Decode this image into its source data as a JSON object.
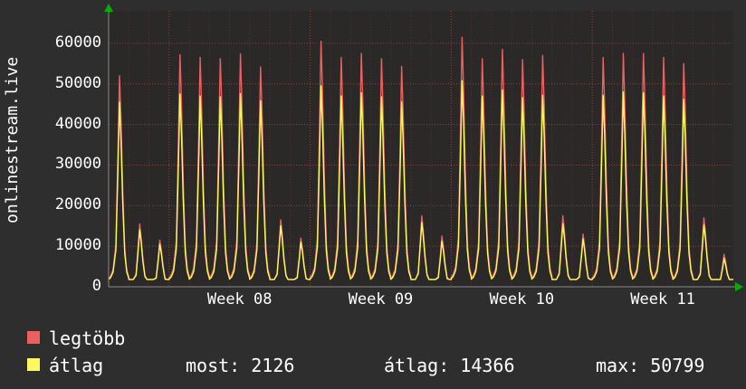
{
  "colors": {
    "background": "#2e2e2e",
    "plot_background": "#2b2828",
    "grid_minor": "rgba(255,100,100,0.18)",
    "grid_major": "rgba(255,100,100,0.45)",
    "axis": "#8a8a8a",
    "arrow": "#00b000",
    "text": "#ffffff",
    "series_max": "#ee6060",
    "series_avg": "#fafa5f"
  },
  "legend": {
    "series": [
      {
        "label": "legtöbb",
        "color": "#ee6060"
      },
      {
        "label": "átlag",
        "color": "#fafa5f"
      }
    ],
    "stats": [
      {
        "text": "most: 2126"
      },
      {
        "text": "átlag: 14366"
      },
      {
        "text": "max: 50799"
      }
    ]
  },
  "chart_data": {
    "type": "line",
    "title": "onlinestream.live",
    "ylabel": "onlinestream.live",
    "xlabel": "",
    "ylim": [
      0,
      68000
    ],
    "yticks": [
      0,
      10000,
      20000,
      30000,
      40000,
      50000,
      60000
    ],
    "grid": true,
    "legend_position": "bottom-left",
    "days_shown": 31,
    "baseline": 1800,
    "x_week_labels": [
      {
        "label": "Week 08",
        "start_day": 3
      },
      {
        "label": "Week 09",
        "start_day": 10
      },
      {
        "label": "Week 10",
        "start_day": 17
      },
      {
        "label": "Week 11",
        "start_day": 24
      }
    ],
    "series": [
      {
        "name": "legtöbb",
        "color": "#ee6060",
        "daily_peaks": [
          52000,
          15500,
          11500,
          57200,
          56500,
          56200,
          57400,
          54200,
          16500,
          12000,
          60500,
          56500,
          57500,
          56200,
          54300,
          17500,
          12500,
          61500,
          56200,
          58500,
          56000,
          57000,
          17500,
          13000,
          56500,
          57500,
          57500,
          56500,
          55000,
          17000,
          8000
        ]
      },
      {
        "name": "átlag",
        "color": "#fafa5f",
        "daily_peaks": [
          45500,
          14000,
          10500,
          47500,
          47000,
          46800,
          47600,
          45800,
          15000,
          11000,
          49500,
          47000,
          47800,
          46800,
          45600,
          15800,
          11200,
          50799,
          47000,
          48500,
          46600,
          47200,
          15500,
          11800,
          47200,
          48000,
          47800,
          47000,
          46200,
          15200,
          7000
        ]
      }
    ],
    "stats": {
      "most": 2126,
      "atlag": 14366,
      "max": 50799
    }
  }
}
